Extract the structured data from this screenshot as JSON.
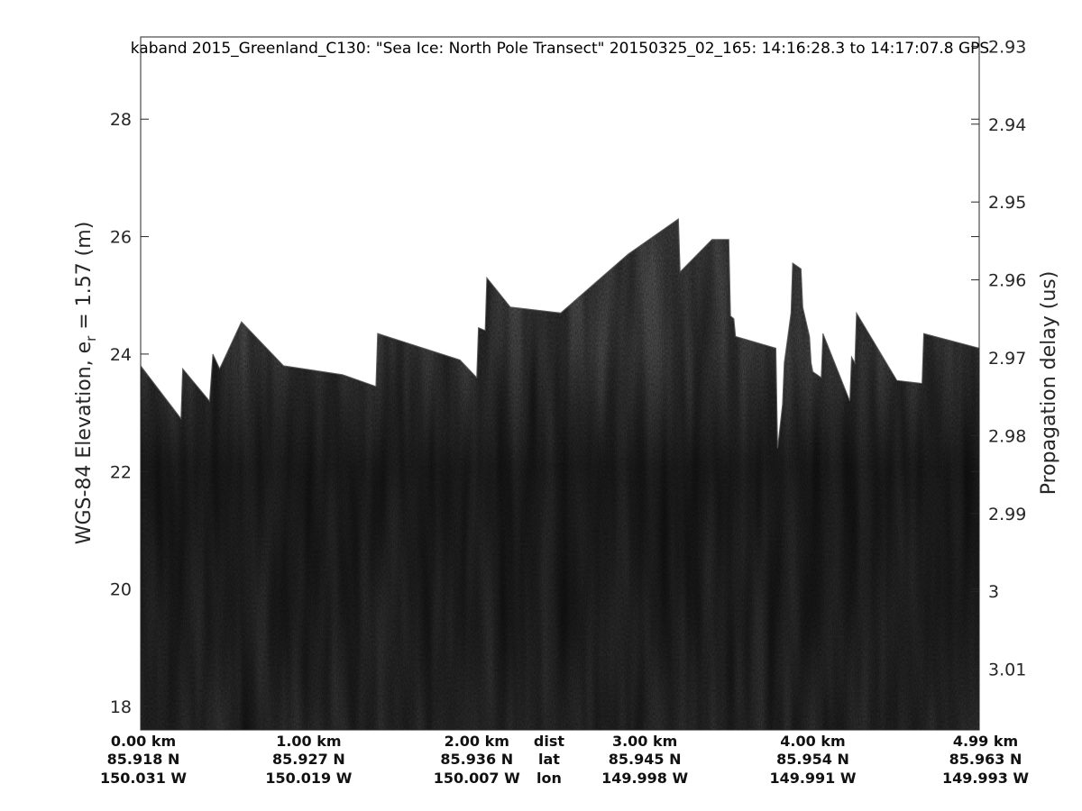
{
  "chart_data": {
    "type": "heatmap",
    "title": "kaband 2015_Greenland_C130: \"Sea Ice: North Pole Transect\"  20150325_02_165: 14:16:28.3 to 14:17:07.8 GPS",
    "ylabel_left": "WGS-84 Elevation, e",
    "ylabel_left_sub": "r",
    "ylabel_left_suffix": " = 1.57 (m)",
    "ylabel_right": "Propagation delay (us)",
    "y_left_ticks": [
      "28",
      "26",
      "24",
      "22",
      "20",
      "18"
    ],
    "y_left_values": [
      28,
      26,
      24,
      22,
      20,
      18
    ],
    "ylim_left": [
      17.6,
      29.4
    ],
    "y_right_ticks": [
      "2.93",
      "2.94",
      "2.95",
      "2.96",
      "2.97",
      "2.98",
      "2.99",
      "3",
      "3.01"
    ],
    "y_right_values": [
      2.93,
      2.94,
      2.95,
      2.96,
      2.97,
      2.98,
      2.99,
      3.0,
      3.01
    ],
    "ylim_right": [
      2.9288,
      3.0178
    ],
    "x_footer_labels": [
      {
        "dist": "0.00 km",
        "lat": "85.918 N",
        "lon": "150.031 W"
      },
      {
        "dist": "1.00 km",
        "lat": "85.927 N",
        "lon": "150.019 W"
      },
      {
        "dist": "2.00 km",
        "lat": "85.936 N",
        "lon": "150.007 W"
      },
      {
        "dist": "3.00 km",
        "lat": "85.945 N",
        "lon": "149.998 W"
      },
      {
        "dist": "4.00 km",
        "lat": "85.954 N",
        "lon": "149.991 W"
      },
      {
        "dist": "4.99 km",
        "lat": "85.963 N",
        "lon": "149.993 W"
      }
    ],
    "x_footer_km": [
      0.0,
      1.0,
      2.0,
      3.0,
      4.0,
      4.99
    ],
    "xlim_km": [
      0.0,
      4.99
    ],
    "row_headers": {
      "dist": "dist",
      "lat": "lat",
      "lon": "lon"
    },
    "surface_km": [
      0.0,
      0.24,
      0.25,
      0.41,
      0.43,
      0.47,
      0.6,
      0.85,
      1.2,
      1.4,
      1.41,
      1.9,
      2.0,
      2.01,
      2.05,
      2.06,
      2.2,
      2.5,
      2.9,
      3.2,
      3.21,
      3.4,
      3.5,
      3.51,
      3.53,
      3.54,
      3.78,
      3.79,
      3.82,
      3.83,
      3.87,
      3.88,
      3.93,
      3.94,
      3.98,
      3.99,
      4.0,
      4.05,
      4.06,
      4.22,
      4.23,
      4.25,
      4.26,
      4.5,
      4.65,
      4.66,
      4.99
    ],
    "surface_elev": [
      23.8,
      22.9,
      23.75,
      23.2,
      24.0,
      23.75,
      24.55,
      23.8,
      23.65,
      23.45,
      24.35,
      23.9,
      23.6,
      24.45,
      24.4,
      25.3,
      24.8,
      24.7,
      25.7,
      26.3,
      25.4,
      25.95,
      25.95,
      24.65,
      24.6,
      24.3,
      24.1,
      22.4,
      23.15,
      23.85,
      24.7,
      25.55,
      25.45,
      24.8,
      24.3,
      23.85,
      23.7,
      23.6,
      24.35,
      23.2,
      23.95,
      23.85,
      24.7,
      23.55,
      23.5,
      24.35,
      24.1
    ]
  }
}
